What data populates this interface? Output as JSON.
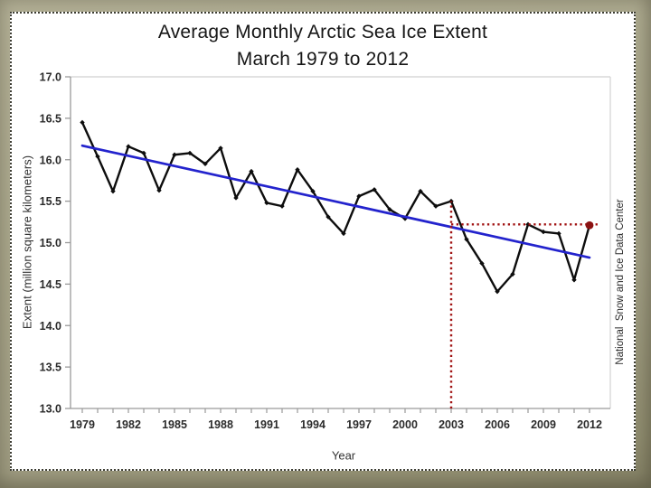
{
  "title": {
    "line1": "Average Monthly Arctic Sea Ice Extent",
    "line2": "March 1979 to 2012"
  },
  "credit": "National  Snow and Ice Data Center",
  "chart_data": {
    "type": "line",
    "title": "Average Monthly Arctic Sea Ice Extent, March 1979 to 2012",
    "xlabel": "Year",
    "ylabel": "Extent (million square kilometers)",
    "xlim": [
      1979,
      2012
    ],
    "ylim": [
      13.0,
      17.0
    ],
    "grid": false,
    "legend": "none",
    "y_tick_labels": [
      "17.0",
      "16.5",
      "16.0",
      "15.5",
      "15.0",
      "14.5",
      "14.0",
      "13.5",
      "13.0"
    ],
    "x_tick_labels": [
      1979,
      1982,
      1985,
      1988,
      1991,
      1994,
      1997,
      2000,
      2003,
      2006,
      2009,
      2012
    ],
    "x_minor_tick_every_year": true,
    "series": [
      {
        "name": "March monthly average extent",
        "color": "#0d0d0d",
        "marker": "diamond",
        "x": [
          1979,
          1980,
          1981,
          1982,
          1983,
          1984,
          1985,
          1986,
          1987,
          1988,
          1989,
          1990,
          1991,
          1992,
          1993,
          1994,
          1995,
          1996,
          1997,
          1998,
          1999,
          2000,
          2001,
          2002,
          2003,
          2004,
          2005,
          2006,
          2007,
          2008,
          2009,
          2010,
          2011,
          2012
        ],
        "values": [
          16.45,
          16.04,
          15.62,
          16.16,
          16.08,
          15.63,
          16.06,
          16.08,
          15.95,
          16.14,
          15.54,
          15.86,
          15.48,
          15.44,
          15.88,
          15.62,
          15.31,
          15.11,
          15.56,
          15.64,
          15.4,
          15.29,
          15.62,
          15.44,
          15.5,
          15.04,
          14.75,
          14.41,
          14.62,
          15.22,
          15.13,
          15.11,
          14.55,
          15.21
        ]
      },
      {
        "name": "Linear trend",
        "color": "#2323cd",
        "marker": "none",
        "x": [
          1979,
          2012
        ],
        "values": [
          16.17,
          14.82
        ]
      }
    ],
    "annotations": {
      "vline": {
        "x": 2003,
        "y_from": 13.0,
        "y_to": 15.5,
        "color": "#a01212",
        "style": "dotted"
      },
      "hline": {
        "y": 15.22,
        "x_from": 2003,
        "x_to": 2012.65,
        "color": "#a01212",
        "style": "dotted"
      },
      "highlight_point": {
        "x": 2012,
        "y": 15.21,
        "color": "#8b1212"
      }
    }
  }
}
